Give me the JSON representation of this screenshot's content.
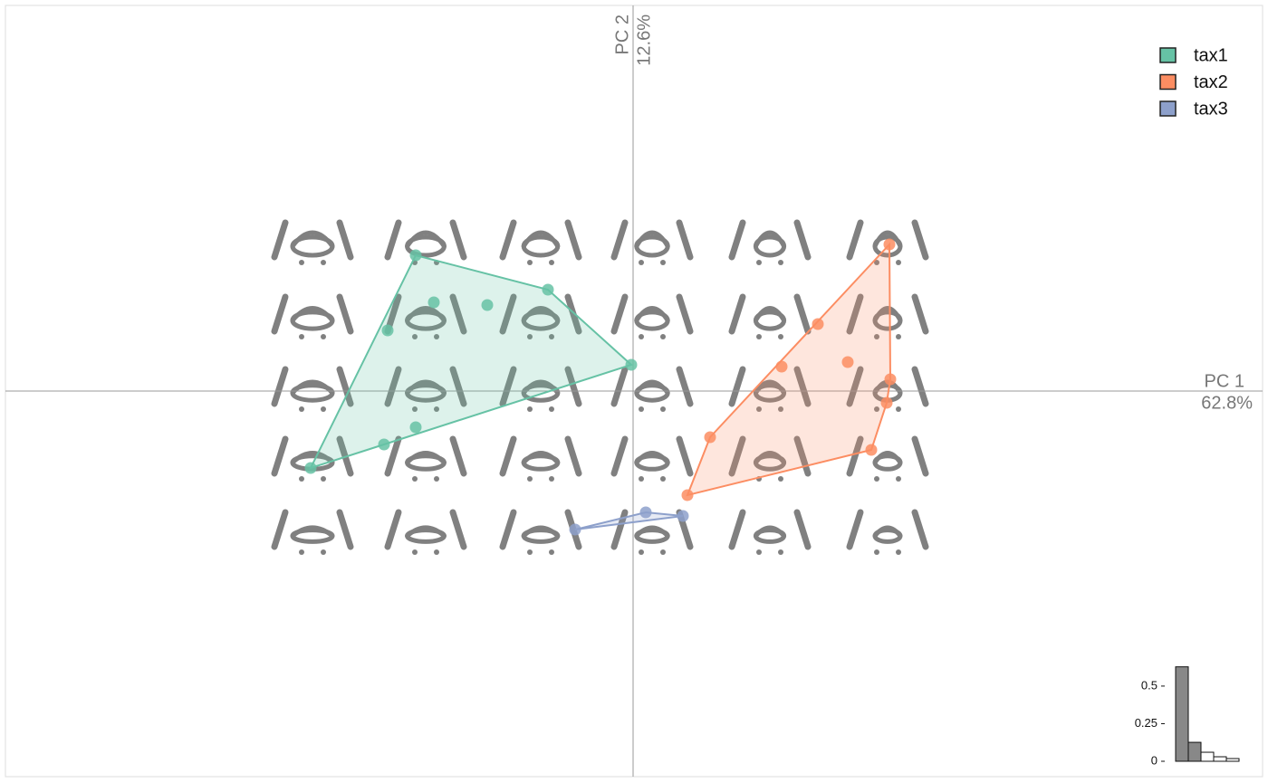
{
  "chart_data": [
    {
      "type": "scatter",
      "xlabel": "PC 1",
      "xlabel_sub": "62.8%",
      "ylabel": "PC 2",
      "ylabel_sub": "12.6%",
      "xlim": [
        -0.693,
        0.695
      ],
      "ylim": [
        -0.426,
        0.426
      ],
      "legend": "top-right",
      "series": [
        {
          "name": "tax1",
          "color": "#66C2A5",
          "x": [
            -0.24,
            -0.094,
            -0.22,
            -0.161,
            -0.271,
            -0.002,
            -0.24,
            -0.275,
            -0.356
          ],
          "values": [
            0.15,
            0.112,
            0.098,
            0.095,
            0.067,
            0.029,
            -0.04,
            -0.059,
            -0.085
          ]
        },
        {
          "name": "tax2",
          "color": "#FC8D62",
          "x": [
            0.283,
            0.204,
            0.237,
            0.164,
            0.284,
            0.28,
            0.085,
            0.263,
            0.06
          ],
          "values": [
            0.162,
            0.074,
            0.032,
            0.027,
            0.013,
            -0.013,
            -0.051,
            -0.065,
            -0.115
          ]
        },
        {
          "name": "tax3",
          "color": "#8DA0CB",
          "x": [
            -0.064,
            0.014,
            0.055
          ],
          "values": [
            -0.153,
            -0.134,
            -0.138
          ]
        }
      ]
    },
    {
      "type": "bar",
      "values": [
        0.628,
        0.126,
        0.06,
        0.03,
        0.018
      ],
      "colors": [
        "#888888",
        "#888888",
        "#ffffff",
        "#ffffff",
        "#ffffff"
      ],
      "ylim": [
        0,
        0.65
      ],
      "yticks": [
        0,
        0.25,
        0.5
      ]
    }
  ]
}
